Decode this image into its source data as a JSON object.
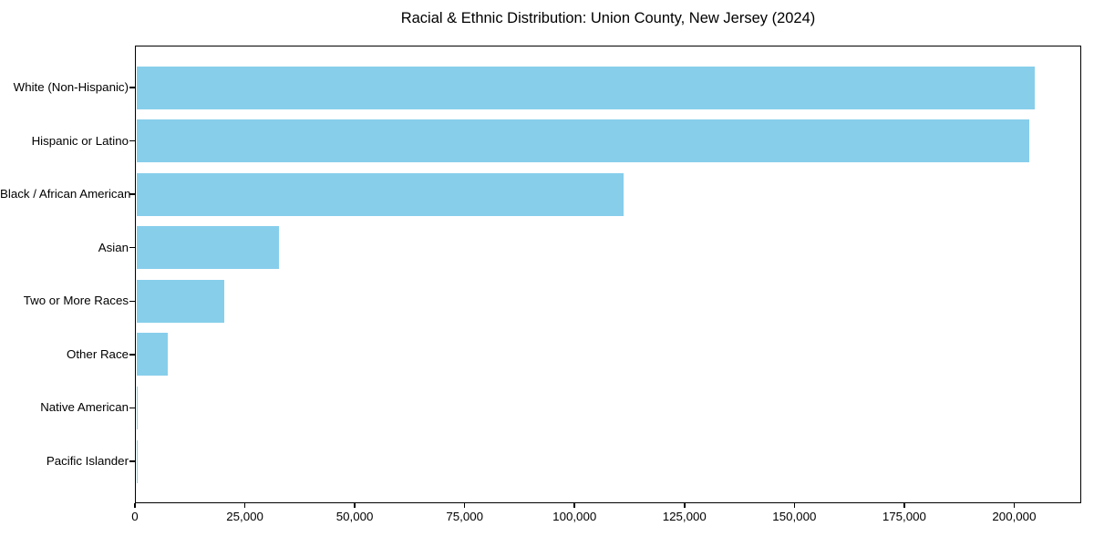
{
  "chart_data": {
    "type": "bar",
    "orientation": "horizontal",
    "title": "Racial & Ethnic Distribution: Union County, New Jersey (2024)",
    "xlabel": "",
    "ylabel": "",
    "categories": [
      "White (Non-Hispanic)",
      "Hispanic or Latino",
      "Black / African American",
      "Asian",
      "Two or More Races",
      "Other Race",
      "Native American",
      "Pacific Islander"
    ],
    "values": [
      205000,
      203700,
      111200,
      32500,
      20000,
      7200,
      400,
      100
    ],
    "xlim": [
      0,
      215250
    ],
    "x_ticks": [
      0,
      25000,
      50000,
      75000,
      100000,
      125000,
      150000,
      175000,
      200000
    ],
    "x_tick_labels": [
      "0",
      "25,000",
      "50,000",
      "75,000",
      "100,000",
      "125,000",
      "150,000",
      "175,000",
      "200,000"
    ],
    "bar_color": "#87CEEB",
    "axis_color": "#000000",
    "text_color": "#000000",
    "background_color": "#ffffff",
    "grid": false,
    "legend": null
  }
}
